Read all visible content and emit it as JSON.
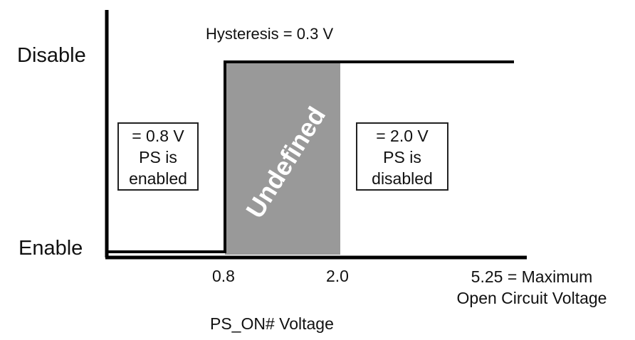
{
  "diagram": {
    "state_labels": {
      "disable": "Disable",
      "enable": "Enable"
    },
    "hysteresis_label": "Hysteresis = 0.3 V",
    "undefined_label": "Undefined",
    "left_box": {
      "line1": "= 0.8 V",
      "line2": "PS is",
      "line3": "enabled"
    },
    "right_box": {
      "line1": "= 2.0 V",
      "line2": "PS is",
      "line3": "disabled"
    },
    "x_ticks": {
      "t1": "0.8",
      "t2": "2.0"
    },
    "max_label": {
      "line1": "5.25 = Maximum",
      "line2": "Open Circuit Voltage"
    },
    "x_axis_label": "PS_ON# Voltage",
    "colors": {
      "line": "#000000",
      "undefined_region": "#999999"
    }
  }
}
